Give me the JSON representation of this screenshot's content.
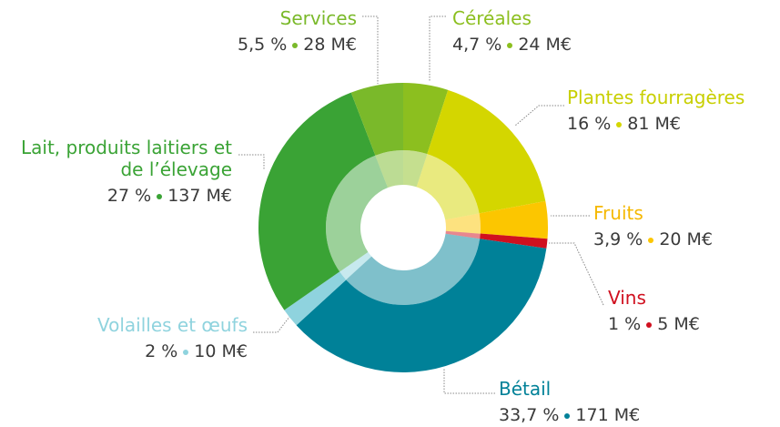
{
  "chart_data": {
    "type": "donut",
    "categories": [
      "Céréales",
      "Plantes fourragères",
      "Fruits",
      "Vins",
      "Bétail",
      "Volailles et œufs",
      "Lait, produits laitiers et de l’élevage",
      "Services"
    ],
    "values": [
      4.7,
      16,
      3.9,
      1,
      33.7,
      2,
      27,
      5.5
    ],
    "value_labels": [
      "4,7 %",
      "16 %",
      "3,9 %",
      "1 %",
      "33,7 %",
      "2 %",
      "27 %",
      "5,5 %"
    ],
    "amounts": [
      24,
      81,
      20,
      5,
      171,
      10,
      137,
      28
    ],
    "amount_labels": [
      "24 M€",
      "81 M€",
      "20 M€",
      "5 M€",
      "171 M€",
      "10 M€",
      "137 M€",
      "28 M€"
    ],
    "colors": [
      "#8cbf1f",
      "#d4d600",
      "#fcc600",
      "#d0101f",
      "#008198",
      "#8fd3de",
      "#3aa335",
      "#7ab92a"
    ]
  }
}
